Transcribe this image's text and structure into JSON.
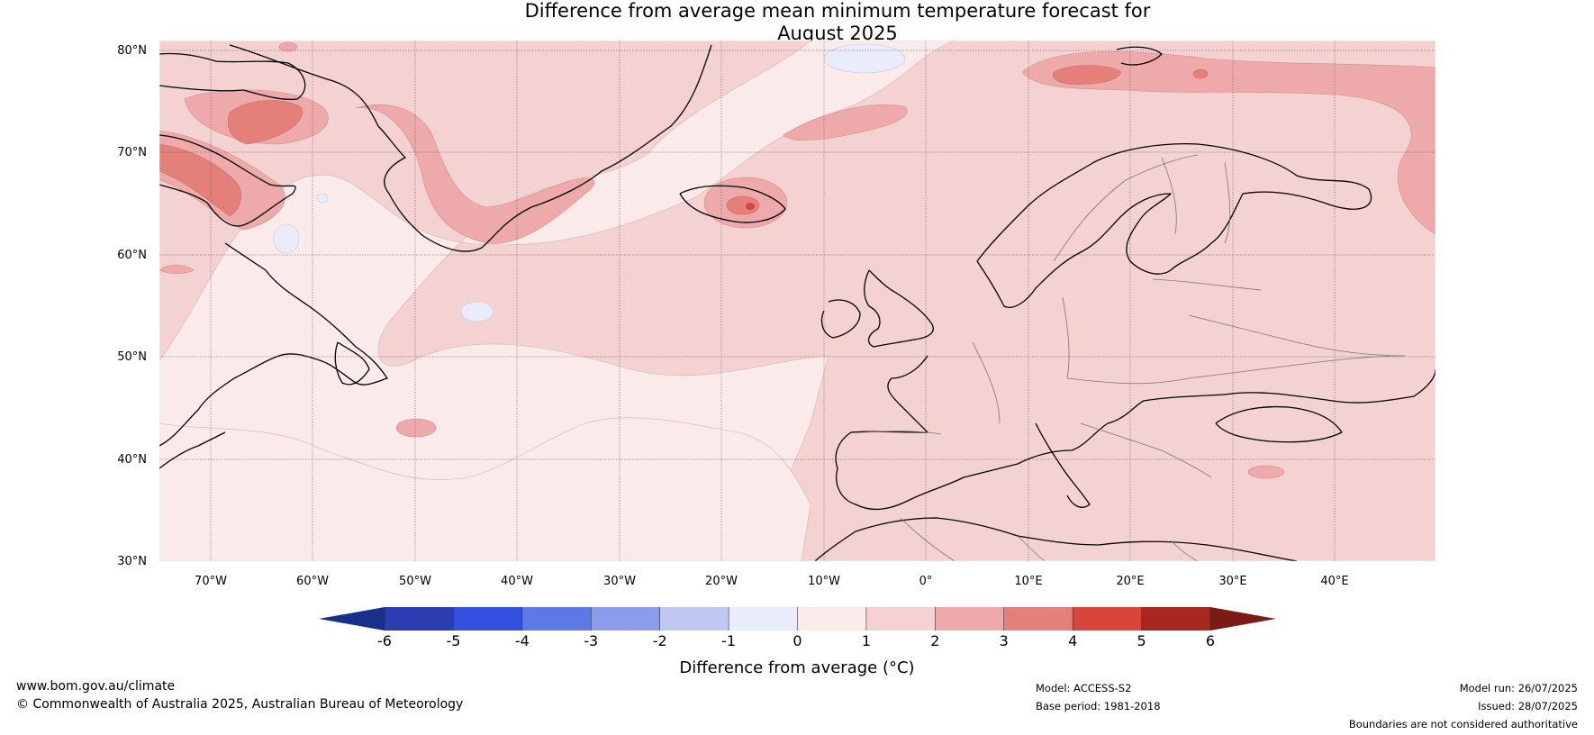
{
  "title": {
    "line1": "Difference from average mean minimum temperature forecast for",
    "line2": "August 2025"
  },
  "map": {
    "lat_labels": [
      "80°N",
      "70°N",
      "60°N",
      "50°N",
      "40°N",
      "30°N"
    ],
    "lon_labels": [
      "70°W",
      "60°W",
      "50°W",
      "40°W",
      "30°W",
      "20°W",
      "10°W",
      "0°",
      "10°E",
      "20°E",
      "30°E",
      "40°E"
    ]
  },
  "colorbar": {
    "label": "Difference from average (°C)",
    "ticks": [
      "-6",
      "-5",
      "-4",
      "-3",
      "-2",
      "-1",
      "0",
      "1",
      "2",
      "3",
      "4",
      "5",
      "6"
    ],
    "colors": [
      "#2a3eb2",
      "#3450e0",
      "#5f78e8",
      "#8a9cea",
      "#bfc8f2",
      "#e8ecfb",
      "#fbeaea",
      "#f5d2d2",
      "#eeaaaa",
      "#e47f7a",
      "#d8453c",
      "#a9271f"
    ],
    "low_extend_color": "#182f8c",
    "high_extend_color": "#7a1b16"
  },
  "footer": {
    "website": "www.bom.gov.au/climate",
    "copyright": "© Commonwealth of Australia 2025, Australian Bureau of Meteorology",
    "model": "Model: ACCESS-S2",
    "base_period": "Base period: 1981-2018",
    "model_run": "Model run: 26/07/2025",
    "issued": "Issued: 28/07/2025",
    "disclaimer": "Boundaries are not considered authoritative"
  }
}
